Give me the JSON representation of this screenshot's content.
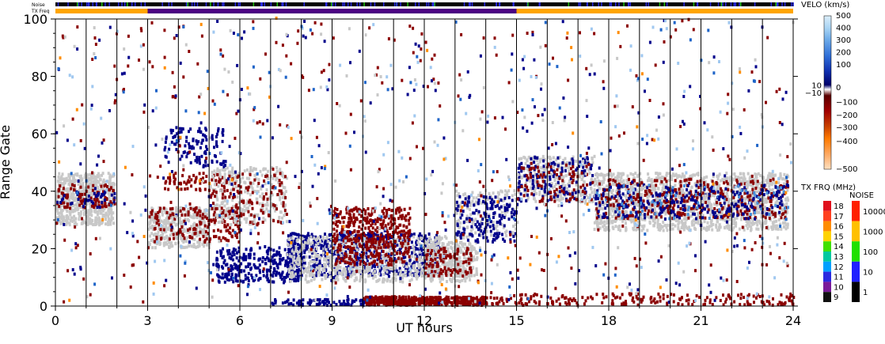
{
  "header": {
    "noise_label": "Noise",
    "txfreq_label": "TX Freq"
  },
  "chart_data": {
    "type": "heatmap",
    "title": "",
    "xlabel": "UT hours",
    "ylabel": "Range Gate",
    "xlim": [
      0,
      24
    ],
    "ylim": [
      0,
      100
    ],
    "x_ticks": [
      "0",
      "3",
      "6",
      "9",
      "12",
      "15",
      "18",
      "21",
      "24"
    ],
    "y_ticks": [
      "0",
      "20",
      "40",
      "60",
      "80",
      "100"
    ],
    "grid_x_hours": [
      0,
      1,
      2,
      3,
      4,
      5,
      6,
      7,
      8,
      9,
      10,
      11,
      12,
      13,
      14,
      15,
      16,
      17,
      18,
      19,
      20,
      21,
      22,
      23,
      24
    ],
    "velocity_scale": {
      "title": "VELO (km/s)",
      "labels": [
        "500",
        "400",
        "300",
        "200",
        "100",
        "10",
        "0",
        "−10",
        "−100",
        "−200",
        "−300",
        "−400",
        "−500"
      ]
    },
    "txfreq_scale": {
      "title": "TX FRQ (MHz)",
      "labels": [
        "18",
        "17",
        "16",
        "15",
        "14",
        "13",
        "12",
        "11",
        "10",
        "9"
      ],
      "colors": [
        "#e0101c",
        "#ff4020",
        "#ff8c00",
        "#ffd200",
        "#40e000",
        "#00c8a0",
        "#00a0ff",
        "#2a2ae0",
        "#7a1a9a",
        "#101010"
      ]
    },
    "noise_scale": {
      "title": "NOISE",
      "labels": [
        "10000",
        "1000",
        "100",
        "10",
        "1"
      ],
      "colors": [
        "#ff2000",
        "#ffc000",
        "#20e000",
        "#2020ff",
        "#000000"
      ]
    },
    "txfreq_bar_segments": [
      {
        "start": 0,
        "end": 3,
        "color": "#ffa500"
      },
      {
        "start": 3,
        "end": 15,
        "color": "#4b0082"
      },
      {
        "start": 15,
        "end": 24,
        "color": "#ffa500"
      }
    ],
    "scatter_regions": [
      {
        "x0": 0,
        "x1": 1.9,
        "y0": 28,
        "y1": 46,
        "color": "#c8c8c8",
        "count": 600
      },
      {
        "x0": 0,
        "x1": 1.9,
        "y0": 34,
        "y1": 42,
        "color": "#8b0000",
        "count": 90
      },
      {
        "x0": 0,
        "x1": 1.9,
        "y0": 34,
        "y1": 40,
        "color": "#00008b",
        "count": 40
      },
      {
        "x0": 3,
        "x1": 5,
        "y0": 20,
        "y1": 34,
        "color": "#c8c8c8",
        "count": 400
      },
      {
        "x0": 3,
        "x1": 6,
        "y0": 22,
        "y1": 34,
        "color": "#8b0000",
        "count": 160
      },
      {
        "x0": 3.5,
        "x1": 5.5,
        "y0": 48,
        "y1": 62,
        "color": "#00008b",
        "count": 120
      },
      {
        "x0": 3.5,
        "x1": 5.5,
        "y0": 40,
        "y1": 46,
        "color": "#8b0000",
        "count": 60
      },
      {
        "x0": 5,
        "x1": 7.5,
        "y0": 28,
        "y1": 48,
        "color": "#c8c8c8",
        "count": 300
      },
      {
        "x0": 5,
        "x1": 7.5,
        "y0": 28,
        "y1": 46,
        "color": "#8b0000",
        "count": 120
      },
      {
        "x0": 5.2,
        "x1": 8,
        "y0": 8,
        "y1": 20,
        "color": "#00008b",
        "count": 300
      },
      {
        "x0": 7.5,
        "x1": 12.5,
        "y0": 10,
        "y1": 25,
        "color": "#00008b",
        "count": 700
      },
      {
        "x0": 7.5,
        "x1": 13.5,
        "y0": 8,
        "y1": 24,
        "color": "#c8c8c8",
        "count": 700
      },
      {
        "x0": 9,
        "x1": 11.5,
        "y0": 14,
        "y1": 34,
        "color": "#8b0000",
        "count": 450
      },
      {
        "x0": 12,
        "x1": 13.7,
        "y0": 10,
        "y1": 22,
        "color": "#c8c8c8",
        "count": 200
      },
      {
        "x0": 12,
        "x1": 13.5,
        "y0": 10,
        "y1": 20,
        "color": "#8b0000",
        "count": 100
      },
      {
        "x0": 13,
        "x1": 15,
        "y0": 24,
        "y1": 40,
        "color": "#c8c8c8",
        "count": 160
      },
      {
        "x0": 13,
        "x1": 15,
        "y0": 22,
        "y1": 38,
        "color": "#00008b",
        "count": 160
      },
      {
        "x0": 10,
        "x1": 14,
        "y0": 0,
        "y1": 3,
        "color": "#8b0000",
        "count": 500
      },
      {
        "x0": 7,
        "x1": 10,
        "y0": 0,
        "y1": 2,
        "color": "#00008b",
        "count": 80
      },
      {
        "x0": 15,
        "x1": 17.5,
        "y0": 36,
        "y1": 52,
        "color": "#c8c8c8",
        "count": 300
      },
      {
        "x0": 15,
        "x1": 17.5,
        "y0": 36,
        "y1": 52,
        "color": "#00008b",
        "count": 140
      },
      {
        "x0": 15,
        "x1": 17.5,
        "y0": 36,
        "y1": 50,
        "color": "#8b0000",
        "count": 80
      },
      {
        "x0": 17.5,
        "x1": 23.8,
        "y0": 26,
        "y1": 46,
        "color": "#c8c8c8",
        "count": 1400
      },
      {
        "x0": 17.5,
        "x1": 23.8,
        "y0": 30,
        "y1": 44,
        "color": "#8b0000",
        "count": 350
      },
      {
        "x0": 17.5,
        "x1": 23.8,
        "y0": 30,
        "y1": 42,
        "color": "#00008b",
        "count": 250
      },
      {
        "x0": 17.5,
        "x1": 23.8,
        "y0": 30,
        "y1": 42,
        "color": "#4a90d9",
        "count": 60
      },
      {
        "x0": 14,
        "x1": 24,
        "y0": 0,
        "y1": 4,
        "color": "#8b0000",
        "count": 200
      },
      {
        "x0": 0,
        "x1": 24,
        "y0": 0,
        "y1": 100,
        "color": "#8b0000",
        "count": 350
      },
      {
        "x0": 0,
        "x1": 24,
        "y0": 0,
        "y1": 100,
        "color": "#00008b",
        "count": 250
      },
      {
        "x0": 0,
        "x1": 24,
        "y0": 0,
        "y1": 100,
        "color": "#a0c8f0",
        "count": 180
      },
      {
        "x0": 0,
        "x1": 24,
        "y0": 0,
        "y1": 100,
        "color": "#ff8c00",
        "count": 60
      },
      {
        "x0": 0,
        "x1": 24,
        "y0": 0,
        "y1": 100,
        "color": "#c8c8c8",
        "count": 120
      },
      {
        "x0": 0,
        "x1": 24,
        "y0": 0,
        "y1": 100,
        "color": "#1e64c8",
        "count": 100
      }
    ]
  }
}
